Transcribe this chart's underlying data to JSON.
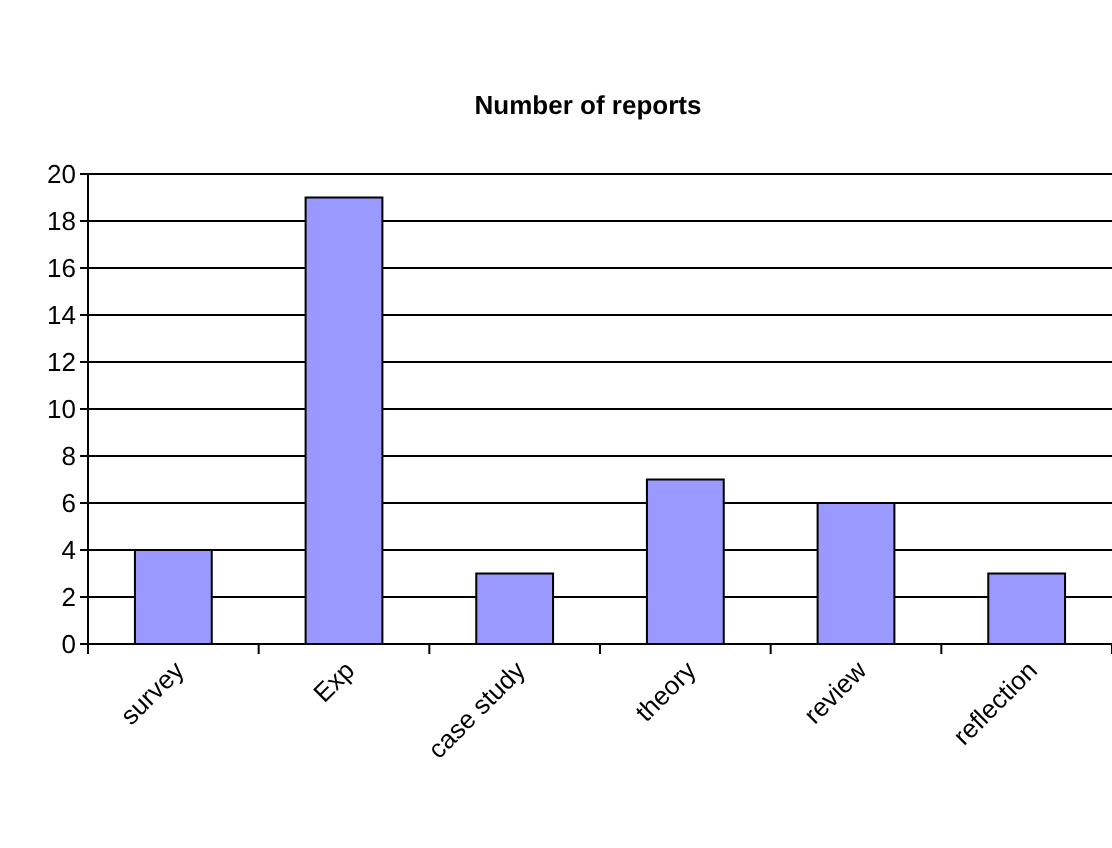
{
  "chart_data": {
    "type": "bar",
    "title": "Number of reports",
    "categories": [
      "survey",
      "Exp",
      "case study",
      "theory",
      "review",
      "reflection"
    ],
    "values": [
      4,
      19,
      3,
      7,
      6,
      3
    ],
    "color": "#9999ff",
    "ylim": [
      0,
      20
    ],
    "yticks": [
      0,
      2,
      4,
      6,
      8,
      10,
      12,
      14,
      16,
      18,
      20
    ],
    "grid": "y"
  }
}
